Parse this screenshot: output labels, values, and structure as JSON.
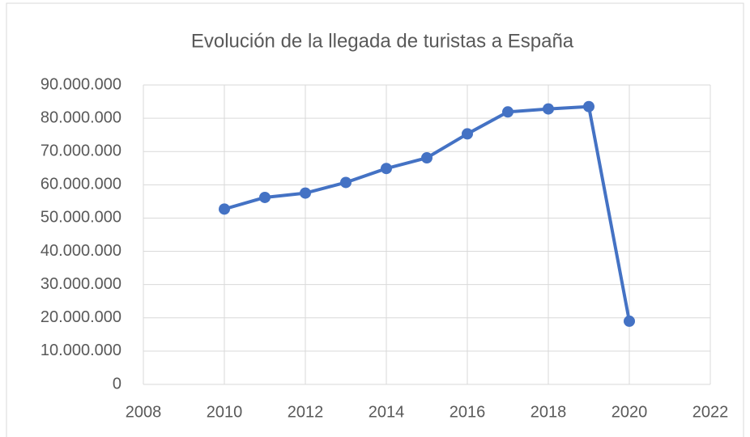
{
  "chart_data": {
    "type": "line",
    "title": "Evolución de la llegada de turistas a España",
    "x": [
      2010,
      2011,
      2012,
      2013,
      2014,
      2015,
      2016,
      2017,
      2018,
      2019,
      2020
    ],
    "series": [
      {
        "name": "Llegada de turistas",
        "color": "#4472c4",
        "values": [
          52700000,
          56200000,
          57500000,
          60700000,
          64900000,
          68100000,
          75300000,
          81900000,
          82800000,
          83500000,
          19000000
        ]
      }
    ],
    "xlim": [
      2008,
      2022
    ],
    "xticks": [
      2008,
      2010,
      2012,
      2014,
      2016,
      2018,
      2020,
      2022
    ],
    "ylim": [
      0,
      90000000
    ],
    "yticks": [
      0,
      {
        "value": 10000000,
        "label": "10.000.000"
      },
      {
        "value": 20000000,
        "label": "20.000.000"
      },
      {
        "value": 30000000,
        "label": "30.000.000"
      },
      {
        "value": 40000000,
        "label": "40.000.000"
      },
      {
        "value": 50000000,
        "label": "50.000.000"
      },
      {
        "value": 60000000,
        "label": "60.000.000"
      },
      {
        "value": 70000000,
        "label": "70.000.000"
      },
      {
        "value": 80000000,
        "label": "80.000.000"
      },
      {
        "value": 90000000,
        "label": "90.000.000"
      }
    ],
    "grid": true
  }
}
